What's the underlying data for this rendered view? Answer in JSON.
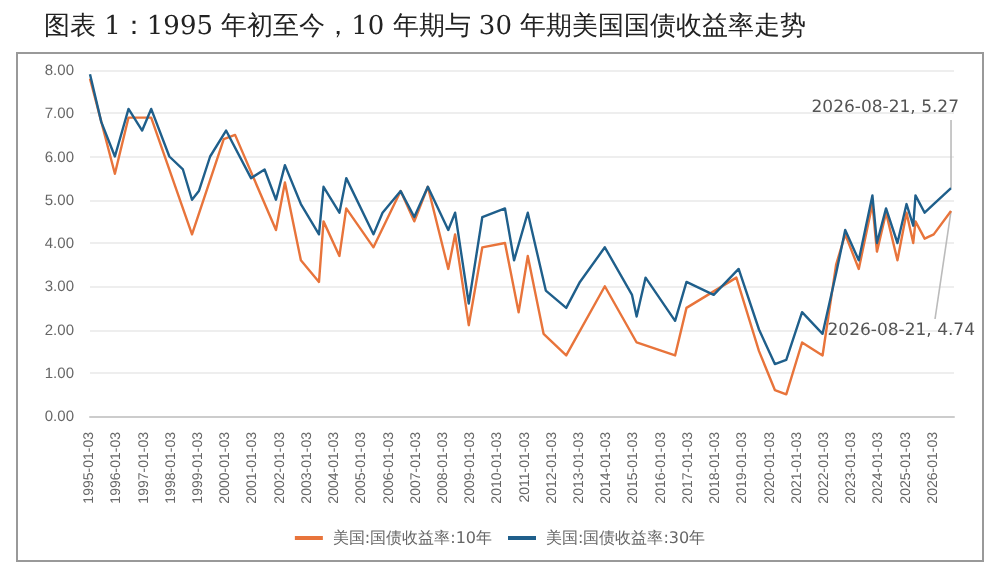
{
  "chart_data": {
    "type": "line",
    "title": "图表 1：1995 年初至今，10 年期与 30 年期美国国债收益率走势",
    "xlim": [
      "1995-01-01",
      "2026-09-30"
    ],
    "xticks": [
      "1995-01-03",
      "1996-01-03",
      "1997-01-03",
      "1998-01-03",
      "1999-01-03",
      "2000-01-03",
      "2001-01-03",
      "2002-01-03",
      "2003-01-03",
      "2004-01-03",
      "2005-01-03",
      "2006-01-03",
      "2007-01-03",
      "2008-01-03",
      "2009-01-03",
      "2010-01-03",
      "2011-01-03",
      "2012-01-03",
      "2013-01-03",
      "2014-01-03",
      "2015-01-03",
      "2016-01-03",
      "2017-01-03",
      "2018-01-03",
      "2019-01-03",
      "2020-01-03",
      "2021-01-03",
      "2022-01-03",
      "2023-01-03",
      "2024-01-03",
      "2025-01-03",
      "2026-01-03"
    ],
    "ylim": [
      0,
      8
    ],
    "yticks": [
      {
        "value": 0,
        "label": "0.00"
      },
      {
        "value": 1,
        "label": "1.00"
      },
      {
        "value": 2,
        "label": "2.00"
      },
      {
        "value": 3,
        "label": "3.00"
      },
      {
        "value": 4,
        "label": "4.00"
      },
      {
        "value": 5,
        "label": "5.00"
      },
      {
        "value": 6,
        "label": "6.00"
      },
      {
        "value": 7,
        "label": "7.00"
      },
      {
        "value": 8,
        "label": "8.00"
      }
    ],
    "grid": "y",
    "legend": "bottom",
    "marker": "none",
    "line_style": "solid",
    "series": [
      {
        "name": "美国:国债收益率:10年",
        "color": "#e8743b",
        "x": [
          "1995-01",
          "1995-12",
          "1996-06",
          "1997-04",
          "1998-10",
          "1999-12",
          "2000-05",
          "2001-11",
          "2002-03",
          "2002-10",
          "2003-06",
          "2003-08",
          "2004-03",
          "2004-06",
          "2005-06",
          "2006-06",
          "2006-12",
          "2007-06",
          "2008-03",
          "2008-06",
          "2008-12",
          "2009-06",
          "2010-04",
          "2010-10",
          "2011-02",
          "2011-09",
          "2012-07",
          "2013-12",
          "2015-02",
          "2016-07",
          "2016-12",
          "2018-10",
          "2019-08",
          "2020-03",
          "2020-08",
          "2021-03",
          "2021-12",
          "2022-06",
          "2022-10",
          "2023-04",
          "2023-10",
          "2023-12",
          "2024-04",
          "2024-09",
          "2025-01",
          "2025-04",
          "2025-05",
          "2025-09",
          "2026-01",
          "2026-08-21"
        ],
        "values": [
          7.8,
          5.6,
          6.9,
          6.9,
          4.2,
          6.4,
          6.5,
          4.3,
          5.4,
          3.6,
          3.1,
          4.5,
          3.7,
          4.8,
          3.9,
          5.2,
          4.5,
          5.3,
          3.4,
          4.2,
          2.1,
          3.9,
          4.0,
          2.4,
          3.7,
          1.9,
          1.4,
          3.0,
          1.7,
          1.4,
          2.5,
          3.2,
          1.5,
          0.6,
          0.5,
          1.7,
          1.4,
          3.5,
          4.2,
          3.4,
          4.9,
          3.8,
          4.7,
          3.6,
          4.7,
          4.0,
          4.5,
          4.1,
          4.2,
          4.74
        ]
      },
      {
        "name": "美国:国债收益率:30年",
        "color": "#1f5f8b",
        "x": [
          "1995-01",
          "1995-06",
          "1995-12",
          "1996-06",
          "1996-12",
          "1997-04",
          "1997-12",
          "1998-06",
          "1998-10",
          "1999-01",
          "1999-06",
          "2000-01",
          "2000-12",
          "2001-06",
          "2001-11",
          "2002-03",
          "2002-10",
          "2003-06",
          "2003-08",
          "2004-03",
          "2004-06",
          "2005-06",
          "2005-10",
          "2006-06",
          "2006-12",
          "2007-06",
          "2008-03",
          "2008-06",
          "2008-12",
          "2009-06",
          "2010-04",
          "2010-08",
          "2011-02",
          "2011-10",
          "2012-07",
          "2013-01",
          "2013-12",
          "2014-12",
          "2015-02",
          "2015-06",
          "2016-07",
          "2016-12",
          "2017-12",
          "2018-11",
          "2019-08",
          "2020-03",
          "2020-08",
          "2021-03",
          "2021-12",
          "2022-06",
          "2022-10",
          "2023-04",
          "2023-10",
          "2023-12",
          "2024-04",
          "2024-09",
          "2025-01",
          "2025-04",
          "2025-05",
          "2025-09",
          "2026-01",
          "2026-08-21"
        ],
        "values": [
          7.9,
          6.8,
          6.0,
          7.1,
          6.6,
          7.1,
          6.0,
          5.7,
          5.0,
          5.2,
          6.0,
          6.6,
          5.5,
          5.7,
          5.0,
          5.8,
          4.9,
          4.2,
          5.3,
          4.7,
          5.5,
          4.2,
          4.7,
          5.2,
          4.6,
          5.3,
          4.3,
          4.7,
          2.6,
          4.6,
          4.8,
          3.6,
          4.7,
          2.9,
          2.5,
          3.1,
          3.9,
          2.8,
          2.3,
          3.2,
          2.2,
          3.1,
          2.8,
          3.4,
          2.0,
          1.2,
          1.3,
          2.4,
          1.9,
          3.3,
          4.3,
          3.6,
          5.1,
          4.0,
          4.8,
          4.0,
          4.9,
          4.4,
          5.1,
          4.7,
          4.9,
          5.27
        ]
      }
    ],
    "annotations": [
      {
        "text": "2026-08-21, 5.27",
        "x": "2026-08-21",
        "y": 5.27
      },
      {
        "text": "2026-08-21, 4.74",
        "x": "2026-08-21",
        "y": 4.74
      }
    ]
  }
}
